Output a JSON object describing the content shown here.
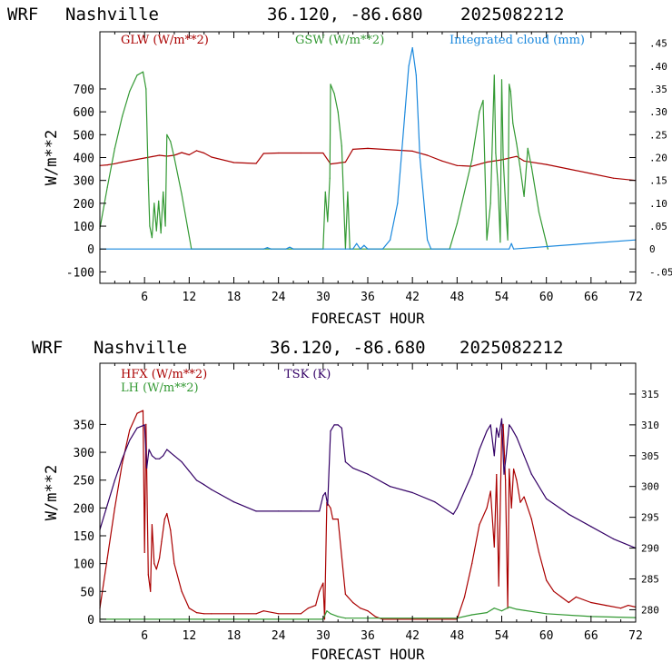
{
  "chart_data": [
    {
      "type": "line",
      "header": {
        "model": "WRF",
        "location": "Nashville",
        "coords": "36.120, -86.680",
        "init": "2025082212"
      },
      "xlabel": "FORECAST HOUR",
      "ylabel": "W/m**2",
      "xlim": [
        0,
        72
      ],
      "ylim": [
        -150,
        950
      ],
      "x_ticks": [
        6,
        12,
        18,
        24,
        30,
        36,
        42,
        48,
        54,
        60,
        66,
        72
      ],
      "y_ticks": [
        -100,
        0,
        100,
        200,
        300,
        400,
        500,
        600,
        700
      ],
      "y2lim": [
        -0.075,
        0.475
      ],
      "y2_ticks": [
        ".45",
        ".40",
        ".35",
        ".30",
        ".25",
        ".20",
        ".15",
        ".10",
        ".05",
        "0",
        "-.05"
      ],
      "y2_tick_values": [
        0.45,
        0.4,
        0.35,
        0.3,
        0.25,
        0.2,
        0.15,
        0.1,
        0.05,
        0.0,
        -0.05
      ],
      "series": [
        {
          "name": "GLW (W/m**2)",
          "color": "#aa0000",
          "axis": "left",
          "x": [
            0,
            1,
            2,
            3,
            4,
            5,
            6,
            7,
            8,
            9,
            10,
            11,
            12,
            13,
            14,
            15,
            18,
            21,
            22,
            24,
            27,
            30,
            31,
            33,
            34,
            36,
            42,
            44,
            46,
            48,
            50,
            52,
            54,
            56,
            57,
            60,
            63,
            66,
            69,
            72
          ],
          "values": [
            365,
            368,
            373,
            380,
            386,
            392,
            398,
            404,
            410,
            406,
            410,
            422,
            412,
            430,
            420,
            402,
            378,
            374,
            418,
            420,
            420,
            420,
            372,
            380,
            436,
            440,
            428,
            410,
            385,
            365,
            362,
            380,
            390,
            405,
            385,
            370,
            350,
            330,
            310,
            300
          ]
        },
        {
          "name": "GSW (W/m**2)",
          "color": "#339933",
          "axis": "left",
          "x": [
            0,
            1,
            2,
            3,
            4,
            5,
            5.8,
            6.2,
            6.5,
            6.7,
            7,
            7.3,
            7.6,
            7.9,
            8.2,
            8.5,
            8.8,
            9,
            9.5,
            10,
            11,
            12.3,
            30,
            30.3,
            30.6,
            30.9,
            31,
            31.5,
            32,
            32.5,
            33,
            33.3,
            33.6,
            47,
            48,
            50,
            51,
            51.5,
            52,
            52.5,
            53,
            53.2,
            53.5,
            53.8,
            54,
            54.2,
            54.5,
            54.8,
            55,
            55.2,
            55.5,
            56,
            56.5,
            57,
            57.5,
            58,
            59,
            60.2
          ],
          "values": [
            90,
            270,
            440,
            580,
            690,
            760,
            775,
            700,
            300,
            100,
            50,
            200,
            80,
            210,
            70,
            250,
            100,
            500,
            470,
            400,
            240,
            0,
            0,
            250,
            120,
            310,
            720,
            680,
            600,
            450,
            0,
            250,
            0,
            0,
            110,
            390,
            600,
            650,
            40,
            200,
            760,
            420,
            280,
            30,
            740,
            400,
            200,
            40,
            720,
            690,
            550,
            460,
            350,
            230,
            440,
            360,
            160,
            0
          ]
        },
        {
          "name": "Integrated cloud (mm)",
          "color": "#1a88dd",
          "axis": "right",
          "x": [
            0,
            22,
            22.5,
            23,
            25,
            25.5,
            26,
            34,
            34.5,
            35,
            35.5,
            36,
            38,
            39,
            40,
            41,
            41.5,
            42,
            42.5,
            43,
            44,
            44.5,
            55,
            55.3,
            55.6,
            72
          ],
          "values": [
            0,
            0,
            0.003,
            0,
            0,
            0.004,
            0,
            0,
            0.012,
            0,
            0.008,
            0,
            0,
            0.02,
            0.1,
            0.3,
            0.4,
            0.44,
            0.38,
            0.2,
            0.02,
            0,
            0,
            0.012,
            0,
            0.02
          ]
        }
      ]
    },
    {
      "type": "line",
      "header": {
        "model": "WRF",
        "location": "Nashville",
        "coords": "36.120, -86.680",
        "init": "2025082212"
      },
      "xlabel": "FORECAST HOUR",
      "ylabel": "W/m**2",
      "xlim": [
        0,
        72
      ],
      "ylim": [
        -5,
        460
      ],
      "x_ticks": [
        6,
        12,
        18,
        24,
        30,
        36,
        42,
        48,
        54,
        60,
        66,
        72
      ],
      "y_ticks": [
        0,
        50,
        100,
        150,
        200,
        250,
        300,
        350
      ],
      "y2lim": [
        278,
        320
      ],
      "y2_ticks": [
        "280",
        "285",
        "290",
        "295",
        "300",
        "305",
        "310",
        "315"
      ],
      "y2_tick_values": [
        280,
        285,
        290,
        295,
        300,
        305,
        310,
        315
      ],
      "series": [
        {
          "name": "HFX (W/m**2)",
          "color": "#aa0000",
          "axis": "left",
          "x": [
            0,
            1,
            2,
            3,
            4,
            5,
            5.8,
            6,
            6.2,
            6.5,
            6.8,
            7,
            7.3,
            7.6,
            8,
            8.3,
            8.7,
            9,
            9.5,
            10,
            11,
            12,
            13,
            14,
            15,
            18,
            21,
            22,
            24,
            27,
            28,
            29,
            29.5,
            30,
            30.2,
            30.5,
            31,
            31.3,
            32,
            33,
            34,
            35,
            36,
            37,
            38,
            40,
            42,
            44,
            46,
            48,
            49,
            50,
            51,
            52,
            52.5,
            53,
            53.3,
            53.6,
            54,
            54.2,
            54.5,
            54.8,
            55,
            55.3,
            55.6,
            56,
            56.5,
            57,
            58,
            59,
            60,
            61,
            62,
            63,
            64,
            66,
            68,
            70,
            71,
            72
          ],
          "values": [
            20,
            110,
            200,
            280,
            340,
            370,
            375,
            120,
            350,
            80,
            50,
            170,
            100,
            90,
            110,
            140,
            180,
            190,
            160,
            100,
            50,
            20,
            12,
            10,
            10,
            10,
            10,
            15,
            10,
            10,
            20,
            25,
            50,
            65,
            0,
            210,
            200,
            180,
            180,
            45,
            30,
            20,
            15,
            5,
            0,
            0,
            0,
            0,
            0,
            0,
            40,
            100,
            170,
            200,
            230,
            130,
            260,
            60,
            340,
            350,
            250,
            20,
            270,
            200,
            270,
            250,
            210,
            220,
            180,
            120,
            70,
            50,
            40,
            30,
            40,
            30,
            25,
            20,
            25,
            22
          ]
        },
        {
          "name": "LH (W/m**2)",
          "color": "#339933",
          "axis": "left",
          "x": [
            0,
            6,
            12,
            24,
            30,
            30.5,
            31,
            32,
            33,
            36,
            42,
            48,
            50,
            52,
            53,
            54,
            55,
            56,
            57,
            60,
            66,
            72
          ],
          "values": [
            0,
            0,
            0,
            0,
            0,
            15,
            10,
            5,
            2,
            2,
            2,
            2,
            8,
            12,
            20,
            15,
            22,
            18,
            16,
            10,
            5,
            3
          ]
        },
        {
          "name": "TSK (K)",
          "color": "#330066",
          "axis": "right",
          "x": [
            0,
            1,
            2,
            3,
            4,
            5,
            6,
            6.3,
            6.6,
            7,
            7.5,
            8,
            8.5,
            9,
            9.5,
            10,
            11,
            12,
            13,
            14,
            15,
            18,
            21,
            24,
            27,
            29.5,
            30,
            30.3,
            30.6,
            31,
            31.5,
            32,
            32.5,
            33,
            34,
            36,
            39,
            42,
            45,
            47.5,
            48,
            50,
            51,
            52,
            52.5,
            53,
            53.3,
            53.6,
            54,
            54.3,
            54.6,
            55,
            55.3,
            56,
            57,
            58,
            60,
            63,
            66,
            69,
            72
          ],
          "values": [
            293,
            297,
            301,
            304.5,
            307.5,
            309.5,
            310,
            303,
            306,
            305,
            304.5,
            304.5,
            305,
            306,
            305.5,
            305,
            304,
            302.5,
            301,
            300.3,
            299.5,
            297.5,
            296,
            296,
            296,
            296,
            298.5,
            299,
            297,
            309,
            310,
            310,
            309.5,
            304,
            303,
            302,
            300,
            299,
            297.5,
            295.5,
            296.5,
            302,
            306,
            309,
            310,
            305,
            309.5,
            308,
            311,
            302,
            305,
            310,
            309.5,
            308,
            305,
            302,
            298,
            295.5,
            293.5,
            291.5,
            290
          ]
        }
      ]
    }
  ]
}
